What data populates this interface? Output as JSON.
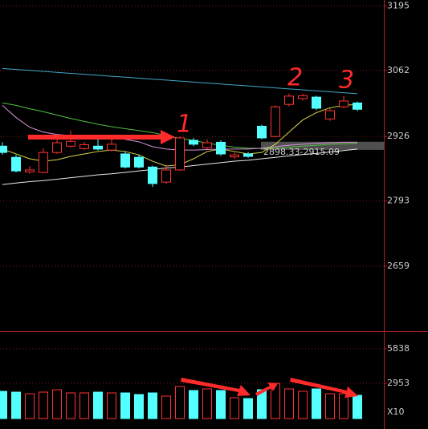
{
  "chart_data": [
    {
      "type": "candlestick",
      "open": [
        2906,
        2883,
        2853,
        2852,
        2893,
        2906,
        2901,
        2906,
        2898,
        2890,
        2883,
        2863,
        2832,
        2857,
        2918,
        2903,
        2914,
        2884,
        2890,
        2947,
        2926,
        2992,
        3004,
        3007,
        2962,
        2987,
        2995
      ],
      "high": [
        2914,
        2888,
        2865,
        2901,
        2923,
        2938,
        2915,
        2926,
        2923,
        2896,
        2888,
        2866,
        2868,
        2926,
        2923,
        2920,
        2918,
        2893,
        2894,
        2950,
        2990,
        3014,
        3014,
        3010,
        2984,
        3009,
        2998
      ],
      "low": [
        2888,
        2852,
        2850,
        2850,
        2890,
        2903,
        2898,
        2897,
        2895,
        2860,
        2860,
        2822,
        2828,
        2855,
        2906,
        2900,
        2886,
        2880,
        2882,
        2920,
        2924,
        2988,
        3000,
        2980,
        2958,
        2984,
        2978
      ],
      "close": [
        2893,
        2855,
        2857,
        2893,
        2913,
        2916,
        2909,
        2900,
        2910,
        2863,
        2863,
        2829,
        2857,
        2923,
        2910,
        2913,
        2890,
        2888,
        2885,
        2923,
        2987,
        3009,
        3010,
        2984,
        2979,
        2999,
        2982
      ],
      "up_color": "#ff3232",
      "down_color": "#54ffff",
      "lines": [
        {
          "color": "#40a8c8",
          "values": [
            3066,
            3064,
            3062,
            3060,
            3058,
            3056,
            3054,
            3052,
            3050,
            3048,
            3046,
            3044,
            3042,
            3040,
            3038,
            3036,
            3034,
            3032,
            3030,
            3028,
            3026,
            3024,
            3022,
            3020,
            3018,
            3016,
            3014
          ]
        },
        {
          "color": "#50c040",
          "values": [
            2995,
            2990,
            2983,
            2977,
            2970,
            2963,
            2957,
            2951,
            2946,
            2942,
            2938,
            2934,
            2928,
            2922,
            2918,
            2912,
            2908,
            2904,
            2902,
            2901,
            2902,
            2904,
            2906,
            2908,
            2910,
            2911,
            2912
          ]
        },
        {
          "color": "#d890d8",
          "values": [
            2990,
            2965,
            2945,
            2935,
            2930,
            2928,
            2926,
            2925,
            2924,
            2920,
            2915,
            2905,
            2900,
            2898,
            2898,
            2899,
            2900,
            2900,
            2900,
            2902,
            2905,
            2908,
            2910,
            2912,
            2913,
            2914,
            2914
          ]
        },
        {
          "color": "#d8d84a",
          "values": [
            2900,
            2890,
            2880,
            2875,
            2878,
            2885,
            2890,
            2895,
            2898,
            2895,
            2888,
            2875,
            2865,
            2868,
            2880,
            2895,
            2900,
            2895,
            2890,
            2893,
            2910,
            2935,
            2960,
            2975,
            2985,
            2990,
            2992
          ]
        },
        {
          "color": "#e8e8e8",
          "values": [
            2827,
            2830,
            2833,
            2835,
            2838,
            2841,
            2844,
            2847,
            2849,
            2852,
            2855,
            2858,
            2861,
            2863,
            2866,
            2869,
            2872,
            2875,
            2877,
            2880,
            2883,
            2886,
            2889,
            2891,
            2894,
            2897,
            2900
          ]
        }
      ],
      "ylim": [
        2525,
        3207
      ],
      "yticks": [
        3195,
        3062,
        2926,
        2793,
        2659
      ],
      "grid": true,
      "range_band": {
        "low": 2898.33,
        "high": 2915.09,
        "label": "2898.33-2915.09"
      },
      "annotations": [
        "1",
        "2",
        "3"
      ]
    },
    {
      "type": "volume",
      "values": [
        2281,
        2214,
        2080,
        2214,
        2416,
        2147,
        2147,
        2214,
        2147,
        2147,
        2013,
        2147,
        1879,
        2684,
        2349,
        2483,
        2349,
        1745,
        1678,
        2416,
        2952,
        2483,
        2281,
        2483,
        2080,
        2080,
        1946
      ],
      "ylim": [
        0,
        7315
      ],
      "yticks": [
        5838,
        2953
      ],
      "unit_label": "X10",
      "grid": true
    }
  ]
}
